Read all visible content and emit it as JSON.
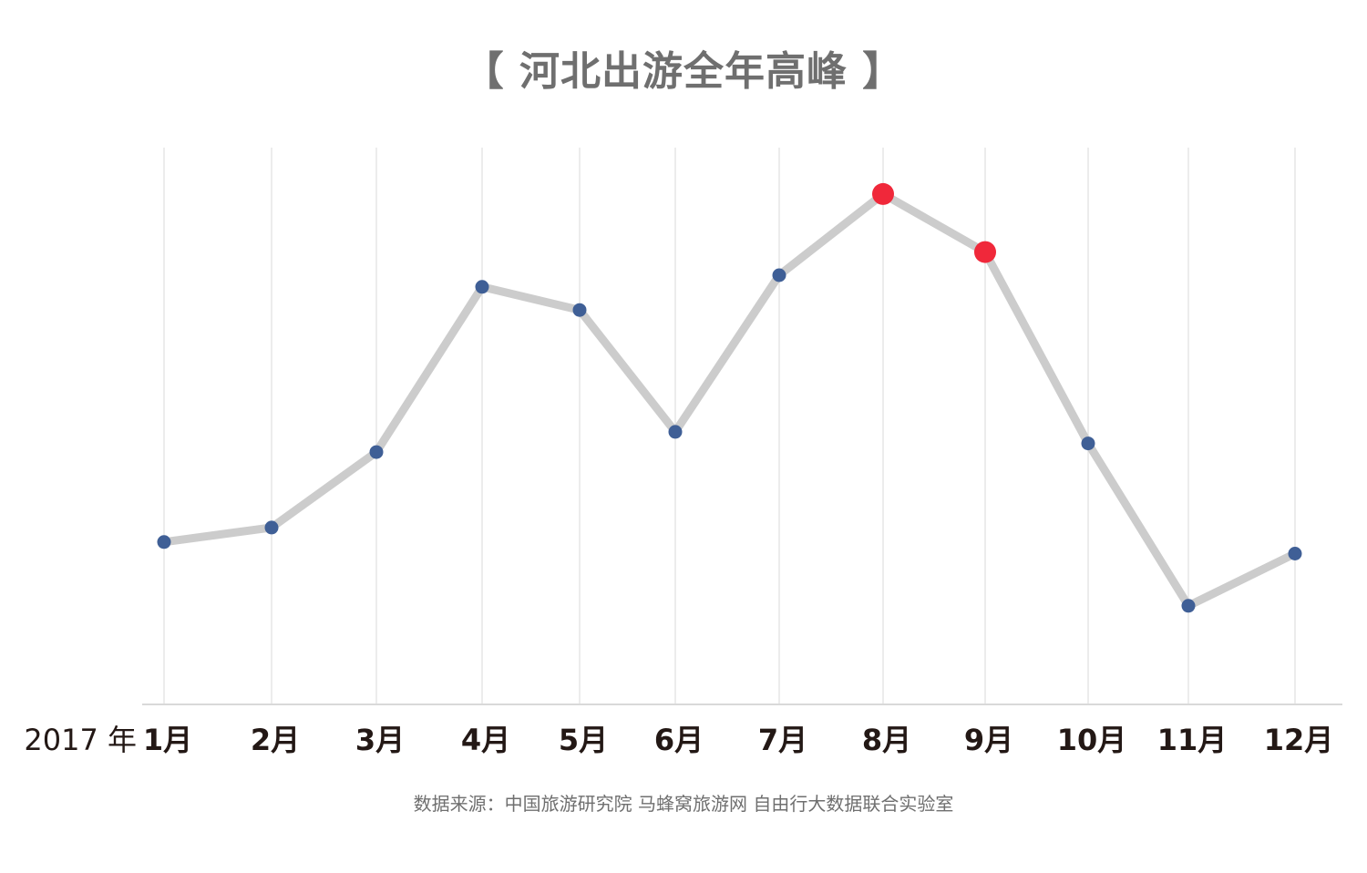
{
  "chart_data": {
    "type": "line",
    "title": "【 河北出游全年高峰 】",
    "year_label": "2017 年",
    "categories": [
      "1月",
      "2月",
      "3月",
      "4月",
      "5月",
      "6月",
      "7月",
      "8月",
      "9月",
      "10月",
      "11月",
      "12月"
    ],
    "values": [
      28,
      30.5,
      43.5,
      72,
      68,
      47,
      74,
      88,
      78,
      45,
      17,
      26
    ],
    "highlight": [
      "8月",
      "9月"
    ],
    "ylim": [
      0,
      96
    ],
    "grid": "vertical",
    "colors": {
      "line": "#cccccc",
      "point": "#3f5f96",
      "highlight_point": "#f0283a",
      "gridline": "#e6e6e6",
      "axis": "#d9d9d9",
      "tick_text": "#231815"
    }
  },
  "source_note": "数据来源：中国旅游研究院 马蜂窝旅游网 自由行大数据联合实验室"
}
